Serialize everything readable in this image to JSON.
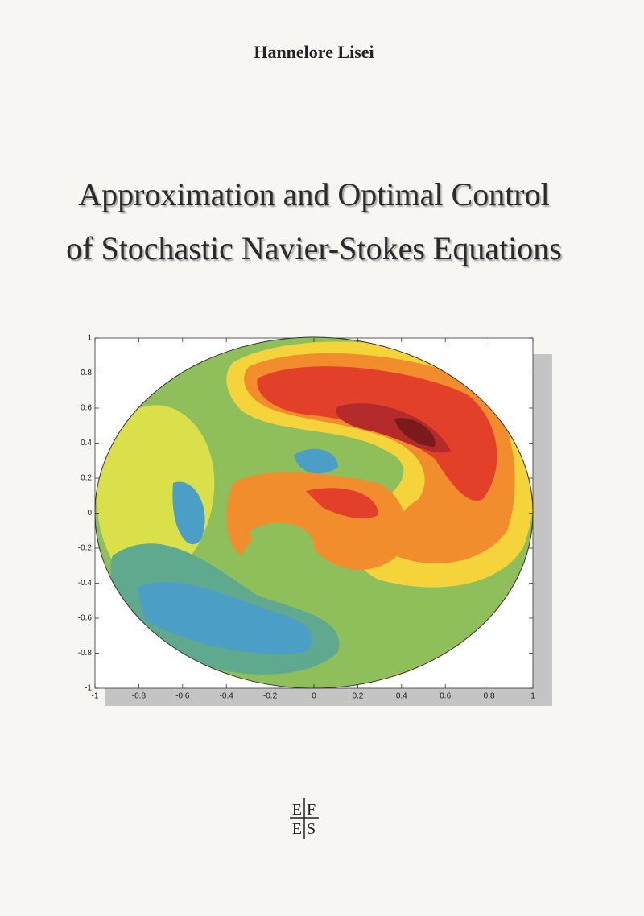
{
  "cover": {
    "author": "Hannelore Lisei",
    "title_lines": [
      "Approximation and Optimal Control",
      "of Stochastic Navier-Stokes Equations"
    ],
    "figure": {
      "xlim": [
        -1,
        1
      ],
      "ylim": [
        -1,
        1
      ],
      "xticks": [
        -1,
        -0.8,
        -0.6,
        -0.4,
        -0.2,
        0,
        0.2,
        0.4,
        0.6,
        0.8,
        1
      ],
      "yticks": [
        -1,
        -0.8,
        -0.6,
        -0.4,
        -0.2,
        0,
        0.2,
        0.4,
        0.6,
        0.8,
        1
      ]
    },
    "publisher_logo": [
      "E",
      "F",
      "E",
      "S"
    ]
  }
}
